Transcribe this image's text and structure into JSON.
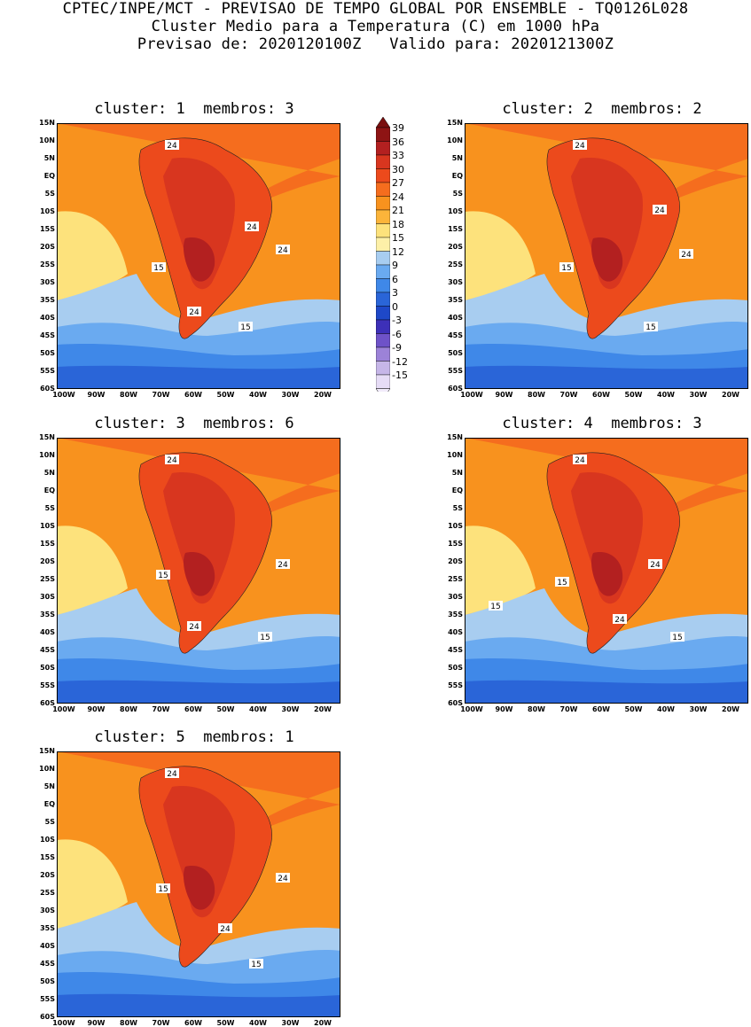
{
  "header": {
    "line1": "CPTEC/INPE/MCT - PREVISAO DE TEMPO GLOBAL POR ENSEMBLE - TQ0126L028",
    "line2": "Cluster Medio para a Temperatura (C) em 1000 hPa",
    "line3": "Previsao de: 2020120100Z   Valido para: 2020121300Z"
  },
  "axes": {
    "lat_labels": [
      "15N",
      "10N",
      "5N",
      "EQ",
      "5S",
      "10S",
      "15S",
      "20S",
      "25S",
      "30S",
      "35S",
      "40S",
      "45S",
      "50S",
      "55S",
      "60S"
    ],
    "lon_labels": [
      "100W",
      "90W",
      "80W",
      "70W",
      "60W",
      "50W",
      "40W",
      "30W",
      "20W"
    ]
  },
  "panels": [
    {
      "title": "cluster: 1  membros: 3",
      "labels": [
        "24",
        "24",
        "24",
        "24",
        "15",
        "15"
      ]
    },
    {
      "title": "cluster: 2  membros: 2",
      "labels": [
        "24",
        "24",
        "15",
        "24",
        "15"
      ]
    },
    {
      "title": "cluster: 3  membros: 6",
      "labels": [
        "24",
        "24",
        "15",
        "24",
        "15"
      ]
    },
    {
      "title": "cluster: 4  membros: 3",
      "labels": [
        "24",
        "24",
        "15",
        "15",
        "24",
        "15"
      ]
    },
    {
      "title": "cluster: 5  membros: 1",
      "labels": [
        "24",
        "24",
        "15",
        "24",
        "15"
      ]
    }
  ],
  "colorbar": {
    "levels": [
      "39",
      "36",
      "33",
      "30",
      "27",
      "24",
      "21",
      "18",
      "15",
      "12",
      "9",
      "6",
      "3",
      "0",
      "-3",
      "-6",
      "-9",
      "-12",
      "-15"
    ],
    "colors": [
      "#8e1414",
      "#b32020",
      "#d8361f",
      "#ec4a1c",
      "#f56d1e",
      "#f8921e",
      "#fbb43a",
      "#fde27c",
      "#fdf0a8",
      "#a8cdf0",
      "#6aaaf0",
      "#3f88e8",
      "#2a65d8",
      "#1e48c8",
      "#3d30b8",
      "#6e52c8",
      "#9c82d8",
      "#c6b6e8",
      "#e6dcf6"
    ]
  }
}
